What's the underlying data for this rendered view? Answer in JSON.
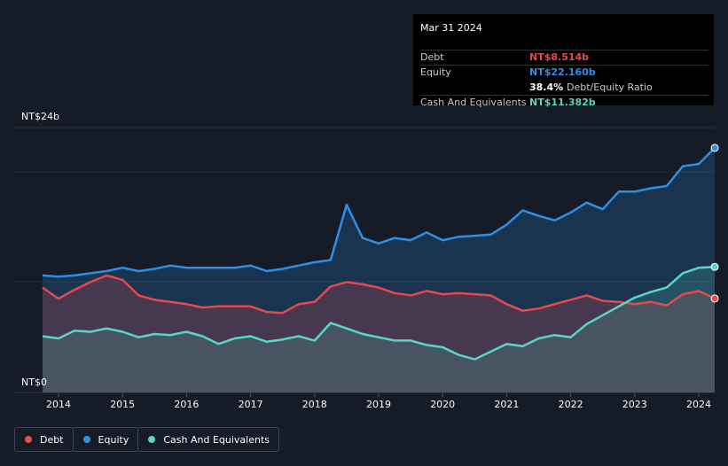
{
  "tooltip": {
    "date": "Mar 31 2024",
    "rows": [
      {
        "label": "Debt",
        "value": "NT$8.514b",
        "color": "#e5484d"
      },
      {
        "label": "Equity",
        "value": "NT$22.160b",
        "color": "#2d8fe5"
      },
      {
        "label": "",
        "value": "38.4%",
        "suffix": "Debt/Equity Ratio",
        "color": "#ffffff"
      },
      {
        "label": "Cash And Equivalents",
        "value": "NT$11.382b",
        "color": "#58d8c4"
      }
    ]
  },
  "legend": [
    {
      "label": "Debt",
      "color": "#e5484d"
    },
    {
      "label": "Equity",
      "color": "#2d8fe5"
    },
    {
      "label": "Cash And Equivalents",
      "color": "#58d8c4"
    }
  ],
  "chart_data": {
    "type": "area",
    "x_ticks": [
      "2014",
      "2015",
      "2016",
      "2017",
      "2018",
      "2019",
      "2020",
      "2021",
      "2022",
      "2023",
      "2024"
    ],
    "y_ticks": [
      "NT$0",
      "NT$24b"
    ],
    "ylim": [
      0,
      24
    ],
    "xlim": [
      2013.6,
      2024.3
    ],
    "series": [
      {
        "name": "Equity",
        "color": "#2d8fe5",
        "x": [
          2013.75,
          2014.0,
          2014.25,
          2014.5,
          2014.75,
          2015.0,
          2015.25,
          2015.5,
          2015.75,
          2016.0,
          2016.25,
          2016.5,
          2016.75,
          2017.0,
          2017.25,
          2017.5,
          2017.75,
          2018.0,
          2018.25,
          2018.5,
          2018.75,
          2019.0,
          2019.25,
          2019.5,
          2019.75,
          2020.0,
          2020.25,
          2020.5,
          2020.75,
          2021.0,
          2021.25,
          2021.5,
          2021.75,
          2022.0,
          2022.25,
          2022.5,
          2022.75,
          2023.0,
          2023.25,
          2023.5,
          2023.75,
          2024.0,
          2024.25
        ],
        "values": [
          10.6,
          10.5,
          10.6,
          10.8,
          11.0,
          11.3,
          11.0,
          11.2,
          11.5,
          11.3,
          11.3,
          11.3,
          11.3,
          11.5,
          11.0,
          11.2,
          11.5,
          11.8,
          12.0,
          17.0,
          14.0,
          13.5,
          14.0,
          13.8,
          14.5,
          13.8,
          14.1,
          14.2,
          14.3,
          15.2,
          16.5,
          16.0,
          15.6,
          16.3,
          17.2,
          16.6,
          18.2,
          18.2,
          18.5,
          18.7,
          20.5,
          20.7,
          22.16
        ]
      },
      {
        "name": "Debt",
        "color": "#e5484d",
        "x": [
          2013.75,
          2014.0,
          2014.25,
          2014.5,
          2014.75,
          2015.0,
          2015.25,
          2015.5,
          2015.75,
          2016.0,
          2016.25,
          2016.5,
          2016.75,
          2017.0,
          2017.25,
          2017.5,
          2017.75,
          2018.0,
          2018.25,
          2018.5,
          2018.75,
          2019.0,
          2019.25,
          2019.5,
          2019.75,
          2020.0,
          2020.25,
          2020.5,
          2020.75,
          2021.0,
          2021.25,
          2021.5,
          2021.75,
          2022.0,
          2022.25,
          2022.5,
          2022.75,
          2023.0,
          2023.25,
          2023.5,
          2023.75,
          2024.0,
          2024.25
        ],
        "values": [
          9.5,
          8.5,
          9.3,
          10.0,
          10.6,
          10.2,
          8.8,
          8.4,
          8.2,
          8.0,
          7.7,
          7.8,
          7.8,
          7.8,
          7.3,
          7.2,
          8.0,
          8.2,
          9.6,
          10.0,
          9.8,
          9.5,
          9.0,
          8.8,
          9.2,
          8.9,
          9.0,
          8.9,
          8.8,
          8.0,
          7.4,
          7.6,
          8.0,
          8.4,
          8.8,
          8.3,
          8.2,
          8.0,
          8.2,
          7.9,
          8.9,
          9.2,
          8.514
        ]
      },
      {
        "name": "Cash And Equivalents",
        "color": "#58d8c4",
        "x": [
          2013.75,
          2014.0,
          2014.25,
          2014.5,
          2014.75,
          2015.0,
          2015.25,
          2015.5,
          2015.75,
          2016.0,
          2016.25,
          2016.5,
          2016.75,
          2017.0,
          2017.25,
          2017.5,
          2017.75,
          2018.0,
          2018.25,
          2018.5,
          2018.75,
          2019.0,
          2019.25,
          2019.5,
          2019.75,
          2020.0,
          2020.25,
          2020.5,
          2020.75,
          2021.0,
          2021.25,
          2021.5,
          2021.75,
          2022.0,
          2022.25,
          2022.5,
          2022.75,
          2023.0,
          2023.25,
          2023.5,
          2023.75,
          2024.0,
          2024.25
        ],
        "values": [
          5.1,
          4.9,
          5.6,
          5.5,
          5.8,
          5.5,
          5.0,
          5.3,
          5.2,
          5.5,
          5.1,
          4.4,
          4.9,
          5.1,
          4.6,
          4.8,
          5.1,
          4.7,
          6.3,
          5.8,
          5.3,
          5.0,
          4.7,
          4.7,
          4.3,
          4.1,
          3.4,
          3.0,
          3.7,
          4.4,
          4.2,
          4.9,
          5.2,
          5.0,
          6.2,
          7.0,
          7.8,
          8.6,
          9.1,
          9.5,
          10.8,
          11.3,
          11.382
        ]
      }
    ]
  }
}
